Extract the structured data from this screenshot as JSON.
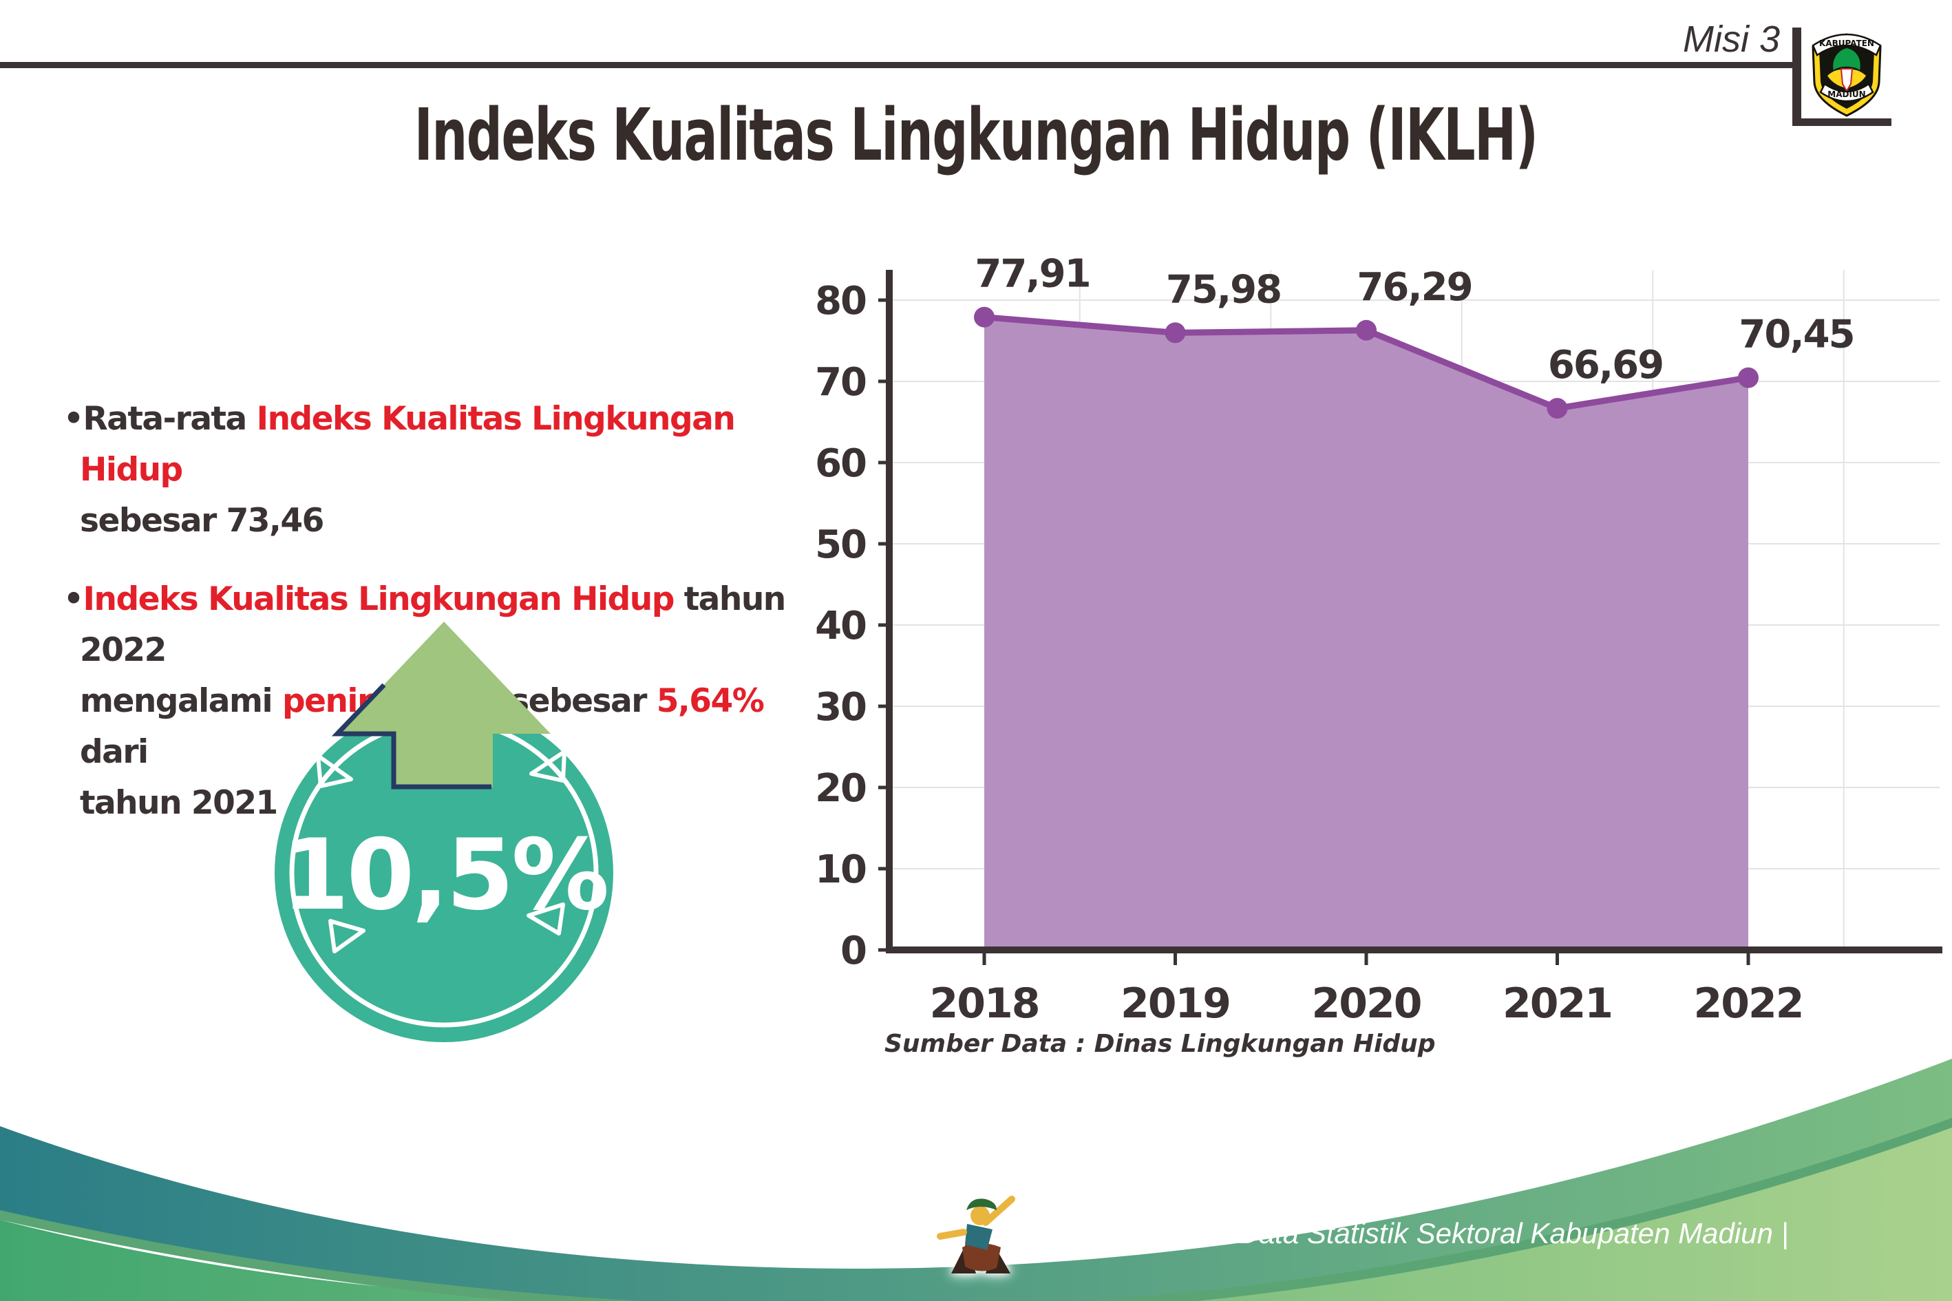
{
  "header": {
    "misi_label": "Misi 3",
    "title": "Indeks Kualitas Lingkungan Hidup (IKLH)"
  },
  "logo": {
    "name": "kabupaten-madiun-seal",
    "top_text": "KABUPATEN",
    "bottom_text": "MADIUN"
  },
  "bullets": {
    "b1": {
      "segments": [
        {
          "t": "•Rata-rata ",
          "c": "dark"
        },
        {
          "t": "Indeks Kualitas Lingkungan Hidup",
          "c": "red"
        },
        {
          "br": true
        },
        {
          "t": "sebesar 73,46",
          "c": "dark"
        }
      ]
    },
    "b2": {
      "segments": [
        {
          "t": "•",
          "c": "dark"
        },
        {
          "t": "Indeks Kualitas Lingkungan Hidup",
          "c": "red"
        },
        {
          "t": " tahun 2022",
          "c": "dark"
        },
        {
          "br": true
        },
        {
          "t": "mengalami ",
          "c": "dark"
        },
        {
          "t": "peningkatan",
          "c": "red"
        },
        {
          "t": " sebesar ",
          "c": "dark"
        },
        {
          "t": "5,64%",
          "c": "red"
        },
        {
          "t": " dari",
          "c": "dark"
        },
        {
          "br": true
        },
        {
          "t": "tahun 2021",
          "c": "dark"
        }
      ]
    }
  },
  "badge": {
    "value": "10,5%",
    "direction": "up",
    "circle_color": "#3bb396",
    "arrow_color": "#9fc57e",
    "arrow_outline_color": "#263a63"
  },
  "chart_data": {
    "type": "area",
    "categories": [
      "2018",
      "2019",
      "2020",
      "2021",
      "2022"
    ],
    "series": [
      {
        "name": "IKLH",
        "values": [
          77.91,
          75.98,
          76.29,
          66.69,
          70.45
        ]
      }
    ],
    "value_labels": [
      "77,91",
      "75,98",
      "76,29",
      "66,69",
      "70,45"
    ],
    "y_ticks": [
      0,
      10,
      20,
      30,
      40,
      50,
      60,
      70,
      80
    ],
    "ylim": [
      0,
      84
    ],
    "grid": true,
    "legend": "none",
    "xlabel": "",
    "ylabel": "",
    "area_color": "#b68fc1",
    "line_color": "#8e4a9c",
    "axis_color": "#3a3233",
    "grid_color": "#e3e3e3",
    "label_color": "#3a3233"
  },
  "source_note": "Sumber Data : Dinas Lingkungan Hidup",
  "footer": {
    "caption": "Media Infografis Data Statistik Sektoral Kabupaten Madiun |",
    "wave_teal_left": "#2b7e86",
    "wave_teal_right": "#7cbd83",
    "wave_green_left": "#42a76f",
    "wave_green_right": "#a9d18d"
  },
  "colors": {
    "text_dark": "#3a3233",
    "highlight_red": "#e3202a"
  }
}
